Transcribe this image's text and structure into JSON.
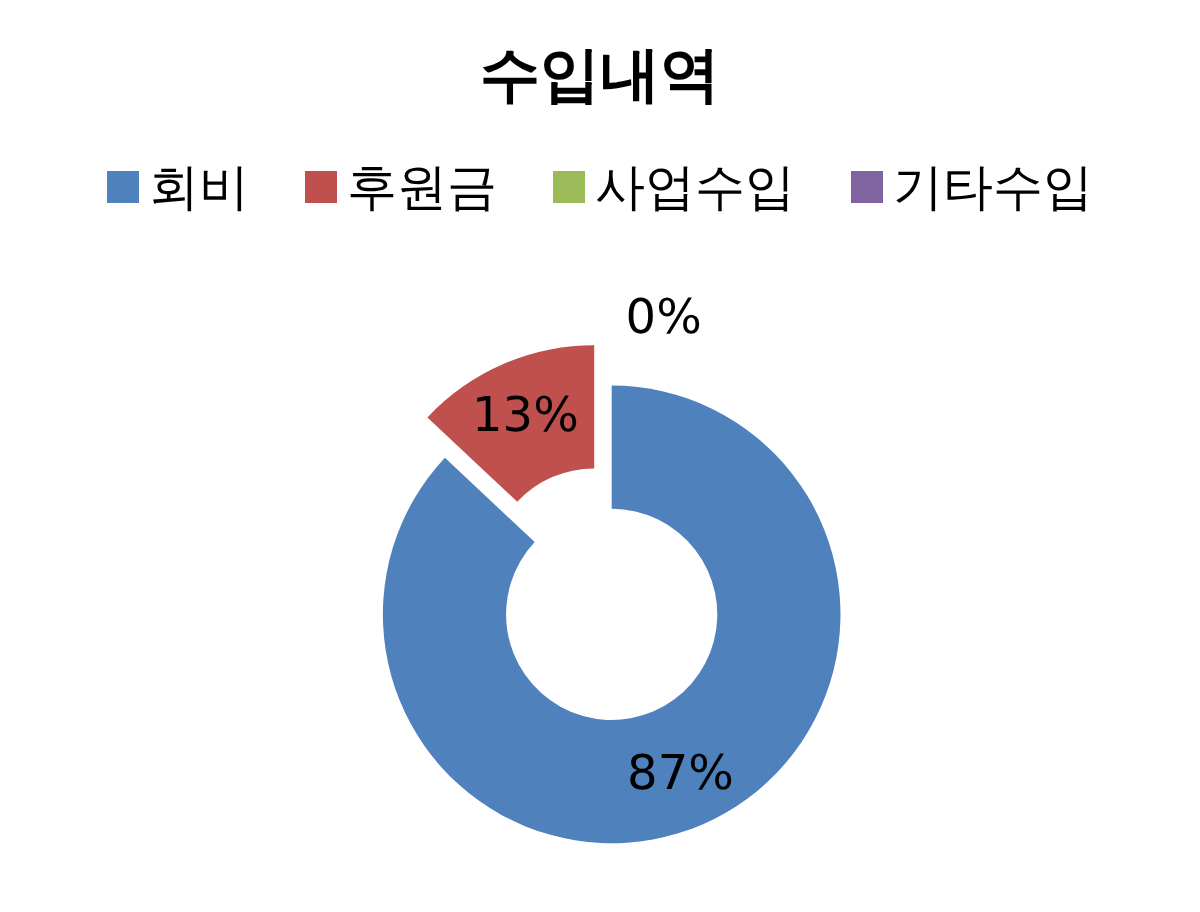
{
  "chart_data": {
    "type": "donut",
    "title": "수입내역",
    "categories": [
      "회비",
      "후원금",
      "사업수입",
      "기타수입"
    ],
    "values": [
      87,
      13,
      0,
      0
    ],
    "colors": [
      "#4f81bd",
      "#c0504d",
      "#9bbb59",
      "#8064a2"
    ],
    "value_labels": [
      "87%",
      "13%",
      "0%",
      null
    ],
    "legend": "top"
  }
}
